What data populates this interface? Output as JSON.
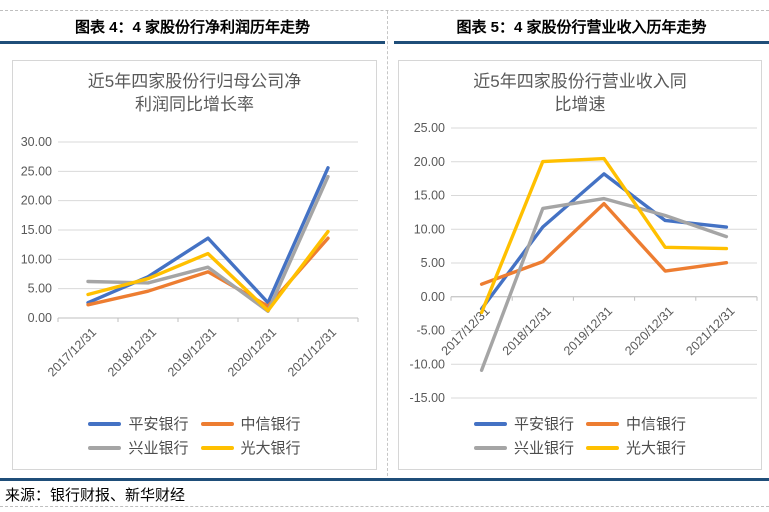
{
  "page": {
    "headers": [
      "图表 4：4 家股份行净利润历年走势",
      "图表 5：4 家股份行营业收入历年走势"
    ],
    "source_note": "来源：银行财报、新华财经",
    "accent_rule_color": "#1F4E79",
    "gridline_color": "#d9d9d9",
    "axis_line_color": "#bfbfbf",
    "axis_text_color": "#595959"
  },
  "chart_data": [
    {
      "type": "line",
      "title": "近5年四家股份行归母公司净利润同比增长率",
      "title_lines": [
        "近5年四家股份行归母公司净",
        "利润同比增长率"
      ],
      "categories": [
        "2017/12/31",
        "2018/12/31",
        "2019/12/31",
        "2020/12/31",
        "2021/12/31"
      ],
      "ylim": [
        0,
        30
      ],
      "ytick_step": 5,
      "grid": true,
      "legend_position": "bottom",
      "series": [
        {
          "name": "平安银行",
          "color": "#4472C4",
          "values": [
            2.61,
            7.02,
            13.61,
            2.6,
            25.61
          ]
        },
        {
          "name": "中信银行",
          "color": "#ED7D31",
          "values": [
            2.25,
            4.57,
            7.87,
            2.01,
            13.6
          ]
        },
        {
          "name": "兴业银行",
          "color": "#A5A5A5",
          "values": [
            6.22,
            5.98,
            8.66,
            1.15,
            24.1
          ]
        },
        {
          "name": "光大银行",
          "color": "#FFC000",
          "values": [
            4.01,
            6.7,
            10.98,
            1.26,
            14.73
          ]
        }
      ]
    },
    {
      "type": "line",
      "title": "近5年四家股份行营业收入同比增速",
      "title_lines": [
        "近5年四家股份行营业收入同",
        "比增速"
      ],
      "categories": [
        "2017/12/31",
        "2018/12/31",
        "2019/12/31",
        "2020/12/31",
        "2021/12/31"
      ],
      "ylim": [
        -15,
        25
      ],
      "ytick_step": 5,
      "grid": true,
      "legend_position": "bottom",
      "series": [
        {
          "name": "平安银行",
          "color": "#4472C4",
          "values": [
            -1.79,
            10.33,
            18.2,
            11.3,
            10.32
          ]
        },
        {
          "name": "中信银行",
          "color": "#ED7D31",
          "values": [
            1.86,
            5.2,
            13.79,
            3.81,
            5.05
          ]
        },
        {
          "name": "兴业银行",
          "color": "#A5A5A5",
          "values": [
            -10.89,
            13.08,
            14.54,
            12.04,
            8.91
          ]
        },
        {
          "name": "光大银行",
          "color": "#FFC000",
          "values": [
            -2.33,
            20.03,
            20.47,
            7.32,
            7.14
          ]
        }
      ]
    }
  ]
}
